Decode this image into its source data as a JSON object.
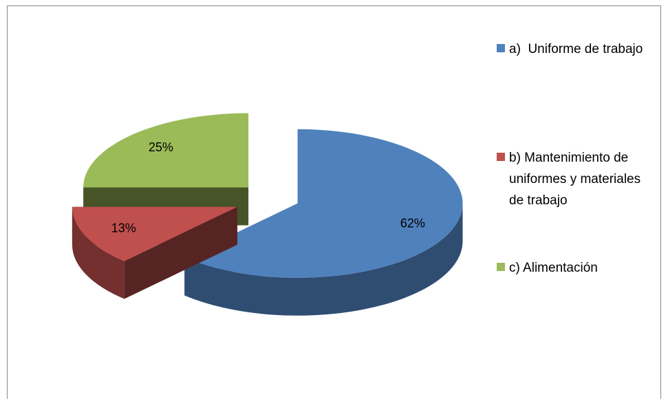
{
  "chart_data": {
    "type": "pie3d",
    "categories": [
      "a)  Uniforme de trabajo",
      "b) Mantenimiento de uniformes y materiales de trabajo",
      "c) Alimentación"
    ],
    "values": [
      62,
      13,
      25
    ],
    "value_labels": [
      "62%",
      "13%",
      "25%"
    ],
    "colors": [
      "#4f81bd",
      "#c0504d",
      "#9bbb59"
    ],
    "legend": "right"
  }
}
